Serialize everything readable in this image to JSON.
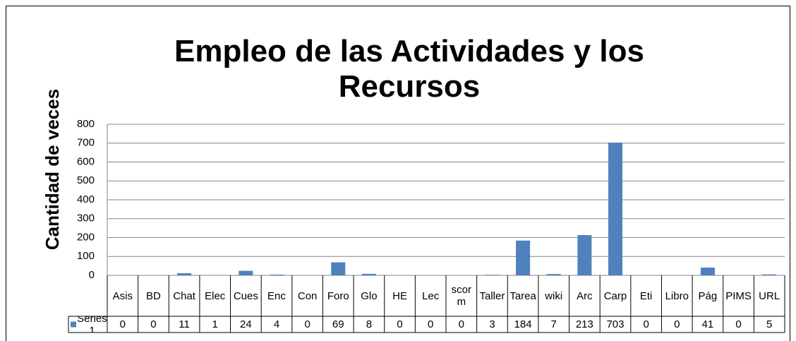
{
  "chart_data": {
    "type": "bar",
    "title": "Empleo de las Actividades y los Recursos",
    "y_label": "Cantidad de veces",
    "categories": [
      "Asis",
      "BD",
      "Chat",
      "Elec",
      "Cues",
      "Enc",
      "Con",
      "Foro",
      "Glo",
      "HE",
      "Lec",
      "scorm",
      "Taller",
      "Tarea",
      "wiki",
      "Arc",
      "Carp",
      "Eti",
      "Libro",
      "Pág",
      "PIMS",
      "URL"
    ],
    "series": [
      {
        "name": "Series1",
        "color": "#4f81bd",
        "values": [
          0,
          0,
          11,
          1,
          24,
          4,
          0,
          69,
          8,
          0,
          0,
          0,
          3,
          184,
          7,
          213,
          703,
          0,
          0,
          41,
          0,
          5
        ]
      }
    ],
    "ylim": [
      0,
      800
    ],
    "yticks": [
      0,
      100,
      200,
      300,
      400,
      500,
      600,
      700,
      800
    ],
    "grid": true
  }
}
